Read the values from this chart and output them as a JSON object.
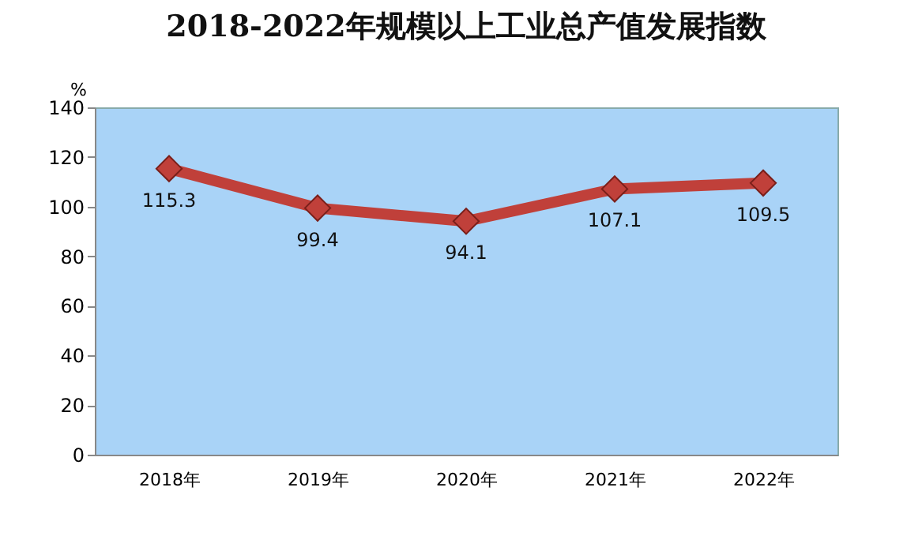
{
  "chart_data": {
    "type": "line",
    "title": "2018-2022年规模以上工业总产值发展指数",
    "ylabel": "%",
    "categories": [
      "2018年",
      "2019年",
      "2020年",
      "2021年",
      "2022年"
    ],
    "series": [
      {
        "color": "#c0403a",
        "values": [
          115.3,
          99.4,
          94.1,
          107.1,
          109.5
        ]
      }
    ],
    "ylim": [
      0,
      140
    ],
    "yticks": [
      0,
      20,
      40,
      60,
      80,
      100,
      120,
      140
    ],
    "grid": false,
    "data_labels": true,
    "marker": "diamond",
    "line_style": "solid"
  }
}
